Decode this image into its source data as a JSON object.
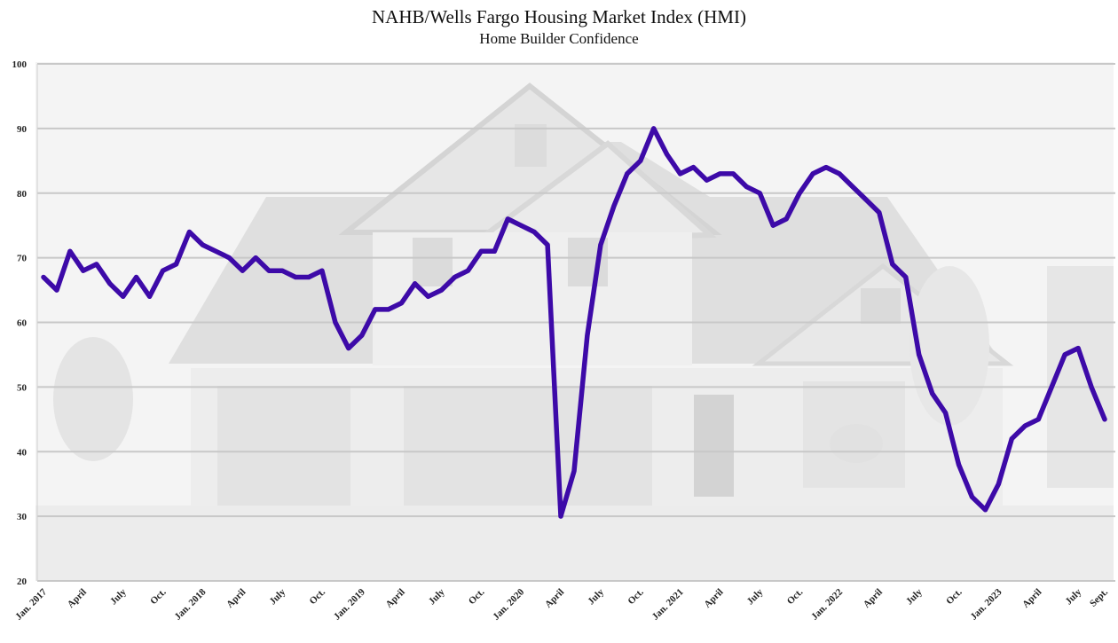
{
  "chart_data": {
    "type": "line",
    "title": "NAHB/Wells Fargo Housing Market Index (HMI)",
    "subtitle": "Home Builder Confidence",
    "xlabel": "",
    "ylabel": "",
    "ylim": [
      20,
      100
    ],
    "yticks": [
      20,
      30,
      40,
      50,
      60,
      70,
      80,
      90,
      100
    ],
    "grid": true,
    "legend": "none",
    "line_color": "#3d0aa8",
    "background_image": "house-photo-faded",
    "x_tick_labels": [
      "Jan. 2017",
      "April",
      "July",
      "Oct.",
      "Jan. 2018",
      "April",
      "July",
      "Oct.",
      "Jan. 2019",
      "April",
      "July",
      "Oct.",
      "Jan. 2020",
      "April",
      "July",
      "Oct.",
      "Jan. 2021",
      "April",
      "July",
      "Oct.",
      "Jan. 2022",
      "April",
      "July",
      "Oct.",
      "Jan. 2023",
      "April",
      "July",
      "Sept."
    ],
    "x_tick_month_index": [
      0,
      3,
      6,
      9,
      12,
      15,
      18,
      21,
      24,
      27,
      30,
      33,
      36,
      39,
      42,
      45,
      48,
      51,
      54,
      57,
      60,
      63,
      66,
      69,
      72,
      75,
      78,
      80
    ],
    "series": [
      {
        "values": [
          67,
          65,
          71,
          68,
          69,
          66,
          64,
          67,
          64,
          68,
          69,
          74,
          72,
          71,
          70,
          68,
          70,
          68,
          68,
          67,
          67,
          68,
          60,
          56,
          58,
          62,
          62,
          63,
          66,
          64,
          65,
          67,
          68,
          71,
          71,
          76,
          75,
          74,
          72,
          30,
          37,
          58,
          72,
          78,
          83,
          85,
          90,
          86,
          83,
          84,
          82,
          83,
          83,
          81,
          80,
          75,
          76,
          80,
          83,
          84,
          83,
          81,
          79,
          77,
          69,
          67,
          55,
          49,
          46,
          38,
          33,
          31,
          35,
          42,
          44,
          45,
          50,
          55,
          56,
          50,
          45
        ]
      }
    ]
  }
}
